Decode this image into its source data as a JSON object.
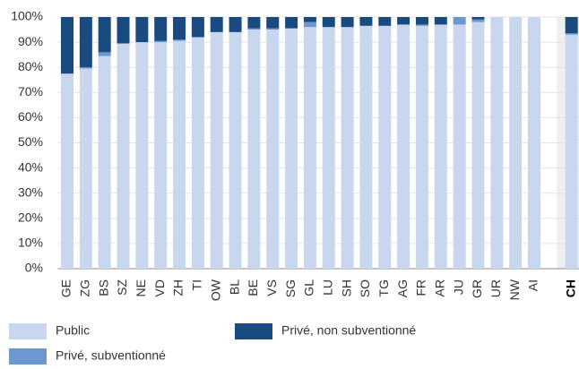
{
  "chart_data": {
    "type": "stacked_bar",
    "categories": [
      "GE",
      "ZG",
      "BS",
      "SZ",
      "NE",
      "VD",
      "ZH",
      "TI",
      "OW",
      "BL",
      "BE",
      "VS",
      "SG",
      "GL",
      "LU",
      "SH",
      "SO",
      "TG",
      "AG",
      "FR",
      "AR",
      "JU",
      "GR",
      "UR",
      "NW",
      "AI",
      null,
      "CH"
    ],
    "series": [
      {
        "name": "Public",
        "color": "#c9d7ee",
        "values": [
          77.5,
          79.5,
          84.5,
          89.5,
          90,
          90,
          90.5,
          92,
          94,
          94,
          95,
          95,
          95.5,
          96,
          96,
          96,
          96.5,
          96.5,
          97,
          96.5,
          97,
          97,
          98,
          100,
          100,
          100,
          null,
          93
        ]
      },
      {
        "name": "Privé, subventionné",
        "color": "#6e97d0",
        "values": [
          0,
          0.5,
          1.5,
          0,
          0,
          0.5,
          0.5,
          0,
          0,
          0,
          0.5,
          0.5,
          0,
          2,
          0,
          0,
          0,
          0,
          0,
          0.5,
          0,
          3,
          1,
          0,
          0,
          0,
          null,
          0.5
        ]
      },
      {
        "name": "Privé, non subventionné",
        "color": "#1a4b80",
        "values": [
          22.5,
          20,
          14,
          10.5,
          10,
          9.5,
          9,
          8,
          6,
          6,
          4.5,
          4.5,
          4.5,
          2,
          4,
          4,
          3.5,
          3.5,
          3,
          3,
          3,
          0,
          1,
          0,
          0,
          0,
          null,
          6.5
        ]
      }
    ],
    "ylim": [
      0,
      100
    ],
    "yticks": [
      {
        "value": 0,
        "label": "0%"
      },
      {
        "value": 10,
        "label": "10%"
      },
      {
        "value": 20,
        "label": "20%"
      },
      {
        "value": 30,
        "label": "30%"
      },
      {
        "value": 40,
        "label": "40%"
      },
      {
        "value": 50,
        "label": "50%"
      },
      {
        "value": 60,
        "label": "60%"
      },
      {
        "value": 70,
        "label": "70%"
      },
      {
        "value": 80,
        "label": "80%"
      },
      {
        "value": 90,
        "label": "90%"
      },
      {
        "value": 100,
        "label": "100%"
      }
    ],
    "grid": true
  }
}
